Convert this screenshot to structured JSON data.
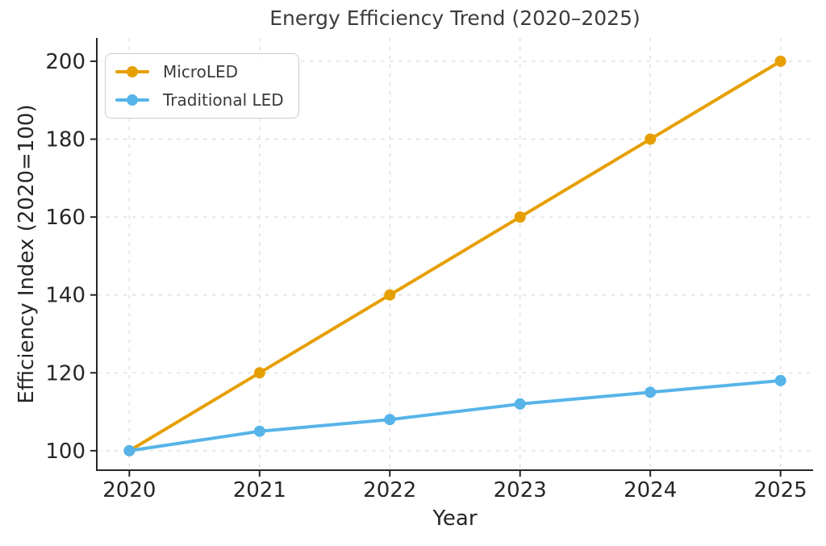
{
  "chart_data": {
    "type": "line",
    "title": "Energy Efficiency Trend (2020–2025)",
    "xlabel": "Year",
    "ylabel": "Efficiency Index (2020=100)",
    "categories": [
      2020,
      2021,
      2022,
      2023,
      2024,
      2025
    ],
    "x_tick_labels": [
      "2020",
      "2021",
      "2022",
      "2023",
      "2024",
      "2025"
    ],
    "y_ticks": [
      100,
      120,
      140,
      160,
      180,
      200
    ],
    "y_tick_labels": [
      "100",
      "120",
      "140",
      "160",
      "180",
      "200"
    ],
    "xlim": [
      2019.75,
      2025.25
    ],
    "ylim": [
      95,
      206
    ],
    "grid": true,
    "grid_style": "dashed",
    "legend_position": "upper-left",
    "series": [
      {
        "name": "MicroLED",
        "color": "#E69F00",
        "values": [
          100,
          120,
          140,
          160,
          180,
          200
        ]
      },
      {
        "name": "Traditional LED",
        "color": "#56B4E9",
        "values": [
          100,
          105,
          108,
          112,
          115,
          118
        ]
      }
    ]
  }
}
